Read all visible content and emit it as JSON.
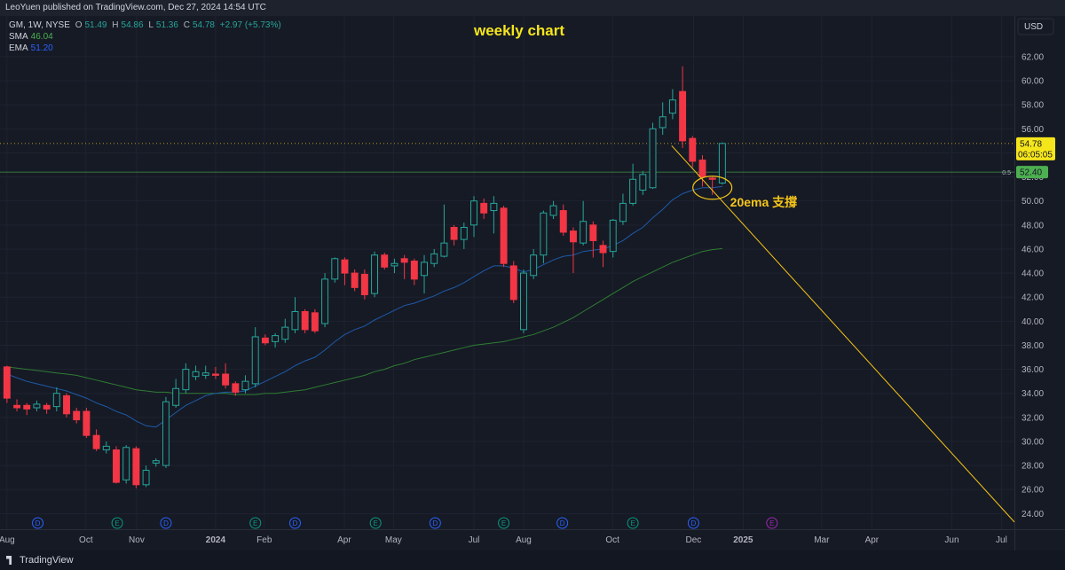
{
  "header": {
    "published": "LeoYuen published on TradingView.com, Dec 27, 2024 14:54 UTC"
  },
  "footer": {
    "brand": "TradingView"
  },
  "chart_data": {
    "type": "candlestick",
    "title": "weekly chart",
    "annotation": "20ema 支撐",
    "symbol": "GM, 1W, NYSE",
    "legend_labels": [
      "O",
      "H",
      "L",
      "C"
    ],
    "change": "+2.97 (+5.73%)",
    "currency": "USD",
    "countdown": "06:05:05",
    "up_color": "#26a69a",
    "down_color": "#f23645",
    "x": [
      0,
      1,
      2,
      3,
      4,
      5,
      6,
      7,
      8,
      9,
      10,
      11,
      12,
      13,
      14,
      15,
      16,
      17,
      18,
      19,
      20,
      21,
      22,
      23,
      24,
      25,
      26,
      27,
      28,
      29,
      30,
      31,
      32,
      33,
      34,
      35,
      36,
      37,
      38,
      39,
      40,
      41,
      42,
      43,
      44,
      45,
      46,
      47,
      48,
      49,
      50,
      51,
      52,
      53,
      54,
      55,
      56,
      57,
      58,
      59,
      60,
      61,
      62,
      63,
      64,
      65,
      66,
      67,
      68,
      69,
      70,
      71,
      72
    ],
    "open": [
      36.2,
      33.0,
      33.0,
      32.8,
      33.0,
      32.9,
      33.8,
      32.5,
      32.5,
      30.5,
      29.3,
      29.3,
      26.8,
      29.4,
      26.4,
      28.2,
      28.0,
      33.0,
      34.3,
      35.4,
      35.5,
      35.6,
      35.6,
      34.8,
      34.3,
      34.8,
      38.6,
      38.3,
      38.5,
      39.3,
      40.8,
      40.7,
      39.8,
      43.5,
      45.1,
      44.0,
      43.9,
      42.3,
      45.5,
      44.6,
      45.2,
      45.0,
      43.8,
      44.8,
      45.4,
      47.8,
      46.8,
      48.0,
      49.8,
      49.2,
      49.4,
      44.6,
      39.3,
      43.8,
      45.5,
      48.8,
      49.2,
      47.5,
      46.5,
      48.0,
      46.3,
      45.8,
      48.3,
      49.8,
      50.9,
      51.1,
      56.1,
      57.3,
      59.1,
      55.2,
      53.4,
      51.9,
      51.49
    ],
    "high": [
      36.3,
      33.5,
      33.2,
      33.4,
      33.2,
      34.5,
      34.0,
      32.8,
      32.8,
      31.0,
      30.0,
      29.6,
      29.7,
      29.6,
      28.0,
      28.6,
      33.7,
      35.2,
      36.5,
      36.3,
      36.3,
      36.2,
      36.5,
      35.0,
      35.5,
      39.5,
      38.9,
      39.0,
      40.2,
      42.0,
      41.0,
      41.0,
      44.0,
      45.3,
      45.3,
      44.3,
      44.3,
      45.8,
      45.7,
      45.2,
      45.5,
      45.2,
      45.5,
      46.0,
      49.7,
      48.0,
      48.2,
      50.4,
      50.2,
      50.4,
      49.6,
      45.0,
      44.3,
      46.0,
      49.2,
      50.0,
      49.7,
      47.8,
      50.0,
      48.3,
      46.7,
      48.5,
      50.6,
      53.1,
      52.5,
      56.5,
      58.2,
      59.3,
      61.2,
      55.4,
      53.8,
      52.0,
      54.86
    ],
    "low": [
      33.2,
      32.5,
      32.2,
      32.5,
      32.3,
      32.5,
      32.0,
      31.5,
      30.3,
      29.2,
      29.0,
      26.5,
      26.5,
      26.1,
      26.2,
      27.9,
      27.8,
      32.8,
      34.0,
      35.1,
      35.2,
      35.2,
      34.4,
      33.8,
      34.0,
      34.5,
      38.0,
      37.8,
      38.2,
      39.0,
      39.0,
      39.0,
      39.5,
      43.2,
      43.0,
      42.5,
      41.8,
      42.0,
      44.3,
      44.0,
      43.5,
      43.0,
      42.3,
      44.5,
      45.3,
      46.3,
      46.0,
      47.0,
      48.5,
      47.3,
      44.5,
      41.5,
      39.0,
      43.5,
      44.8,
      48.5,
      47.1,
      44.0,
      46.3,
      45.3,
      44.5,
      45.3,
      48.0,
      49.6,
      50.5,
      51.0,
      55.5,
      56.8,
      54.4,
      52.8,
      51.2,
      50.5,
      51.36
    ],
    "close": [
      33.6,
      32.8,
      32.7,
      33.1,
      32.7,
      34.0,
      32.3,
      31.8,
      30.5,
      29.4,
      29.6,
      26.6,
      29.5,
      26.4,
      27.6,
      28.4,
      33.3,
      34.4,
      36.0,
      35.8,
      35.7,
      35.5,
      34.7,
      34.1,
      35.0,
      38.7,
      38.2,
      38.8,
      39.5,
      40.8,
      39.3,
      39.2,
      43.5,
      45.2,
      44.0,
      42.8,
      42.2,
      45.5,
      44.5,
      44.8,
      44.9,
      43.5,
      44.9,
      45.6,
      46.5,
      46.8,
      47.8,
      50.0,
      49.0,
      49.8,
      44.8,
      41.8,
      44.0,
      45.5,
      49.0,
      49.6,
      47.4,
      46.6,
      48.3,
      46.7,
      45.7,
      48.4,
      49.8,
      51.8,
      52.2,
      56.0,
      57.0,
      58.4,
      55.0,
      53.3,
      52.0,
      51.8,
      54.78
    ],
    "series": [
      {
        "name": "SMA",
        "color": "#2e7d32",
        "legend_value": "46.04",
        "values": [
          36.2,
          36.1,
          36.0,
          35.9,
          35.8,
          35.7,
          35.6,
          35.5,
          35.3,
          35.1,
          34.9,
          34.7,
          34.5,
          34.3,
          34.2,
          34.1,
          34.1,
          34.0,
          34.0,
          34.0,
          34.0,
          34.0,
          34.0,
          33.9,
          33.9,
          33.9,
          34.0,
          34.0,
          34.1,
          34.2,
          34.3,
          34.5,
          34.7,
          34.9,
          35.1,
          35.3,
          35.5,
          35.8,
          36.0,
          36.3,
          36.5,
          36.8,
          37.0,
          37.2,
          37.4,
          37.6,
          37.8,
          38.0,
          38.1,
          38.2,
          38.3,
          38.5,
          38.7,
          38.9,
          39.2,
          39.5,
          39.9,
          40.3,
          40.8,
          41.3,
          41.8,
          42.3,
          42.8,
          43.3,
          43.7,
          44.1,
          44.5,
          44.9,
          45.2,
          45.5,
          45.8,
          45.95,
          46.04
        ]
      },
      {
        "name": "EMA",
        "color": "#1e5aa8",
        "legend_value": "51.20",
        "values": [
          35.6,
          35.3,
          35.0,
          34.8,
          34.6,
          34.4,
          34.2,
          33.9,
          33.6,
          33.2,
          32.9,
          32.5,
          32.2,
          31.7,
          31.3,
          31.2,
          31.8,
          32.4,
          33.0,
          33.4,
          33.8,
          34.0,
          34.1,
          34.1,
          34.2,
          34.6,
          35.0,
          35.4,
          35.8,
          36.3,
          36.7,
          37.0,
          37.6,
          38.3,
          38.9,
          39.3,
          39.6,
          40.1,
          40.5,
          40.9,
          41.3,
          41.5,
          41.8,
          42.1,
          42.5,
          42.8,
          43.2,
          43.7,
          44.2,
          44.6,
          44.6,
          44.4,
          44.1,
          44.3,
          44.7,
          45.1,
          45.4,
          45.5,
          45.8,
          45.9,
          46.0,
          46.3,
          46.7,
          47.3,
          47.8,
          48.6,
          49.3,
          50.1,
          50.6,
          50.9,
          51.1,
          51.1,
          51.2
        ]
      }
    ],
    "levels": [
      {
        "value": 52.4,
        "label": "52.40",
        "tag": "0.5",
        "color": "#4caf50"
      }
    ],
    "trendline": {
      "x": [
        66.9,
        101.4
      ],
      "y": [
        54.6,
        23.3
      ],
      "color": "#f5c518"
    },
    "highlight": {
      "x": 71.0,
      "y": 51.1,
      "color": "#f5c518"
    },
    "events": [
      {
        "label": "D",
        "x": 3.1,
        "color": "#2962ff"
      },
      {
        "label": "E",
        "x": 11.1,
        "color": "#089981"
      },
      {
        "label": "D",
        "x": 16.0,
        "color": "#2962ff"
      },
      {
        "label": "E",
        "x": 25.0,
        "color": "#089981"
      },
      {
        "label": "D",
        "x": 29.0,
        "color": "#2962ff"
      },
      {
        "label": "E",
        "x": 37.1,
        "color": "#089981"
      },
      {
        "label": "D",
        "x": 43.1,
        "color": "#2962ff"
      },
      {
        "label": "E",
        "x": 50.0,
        "color": "#089981"
      },
      {
        "label": "D",
        "x": 55.9,
        "color": "#2962ff"
      },
      {
        "label": "E",
        "x": 63.0,
        "color": "#089981"
      },
      {
        "label": "D",
        "x": 69.1,
        "color": "#2962ff"
      },
      {
        "label": "E",
        "x": 77.0,
        "color": "#9c27b0"
      }
    ],
    "xlim": [
      -0.7,
      101.4
    ],
    "xticks": [
      {
        "value": 0,
        "label": "Aug"
      },
      {
        "value": 7.95,
        "label": "Oct"
      },
      {
        "value": 13.05,
        "label": "Nov"
      },
      {
        "value": 21.0,
        "label": "2024"
      },
      {
        "value": 25.9,
        "label": "Feb"
      },
      {
        "value": 33.95,
        "label": "Apr"
      },
      {
        "value": 38.9,
        "label": "May"
      },
      {
        "value": 47.0,
        "label": "Jul"
      },
      {
        "value": 52.0,
        "label": "Aug"
      },
      {
        "value": 60.95,
        "label": "Oct"
      },
      {
        "value": 69.1,
        "label": "Dec"
      },
      {
        "value": 74.1,
        "label": "2025"
      },
      {
        "value": 82.0,
        "label": "Mar"
      },
      {
        "value": 87.05,
        "label": "Apr"
      },
      {
        "value": 95.1,
        "label": "Jun"
      },
      {
        "value": 100.1,
        "label": "Jul"
      }
    ],
    "ylim": [
      22.7,
      64.5
    ],
    "yticks": [
      {
        "value": 24,
        "label": "24.00"
      },
      {
        "value": 26,
        "label": "26.00"
      },
      {
        "value": 28,
        "label": "28.00"
      },
      {
        "value": 30,
        "label": "30.00"
      },
      {
        "value": 32,
        "label": "32.00"
      },
      {
        "value": 34,
        "label": "34.00"
      },
      {
        "value": 36,
        "label": "36.00"
      },
      {
        "value": 38,
        "label": "38.00"
      },
      {
        "value": 40,
        "label": "40.00"
      },
      {
        "value": 42,
        "label": "42.00"
      },
      {
        "value": 44,
        "label": "44.00"
      },
      {
        "value": 46,
        "label": "46.00"
      },
      {
        "value": 48,
        "label": "48.00"
      },
      {
        "value": 50,
        "label": "50.00"
      },
      {
        "value": 52,
        "label": "52.00"
      },
      {
        "value": 54,
        "label": "54.00"
      },
      {
        "value": 56,
        "label": "56.00"
      },
      {
        "value": 58,
        "label": "58.00"
      },
      {
        "value": 60,
        "label": "60.00"
      },
      {
        "value": 62,
        "label": "62.00"
      }
    ],
    "grid": true
  }
}
